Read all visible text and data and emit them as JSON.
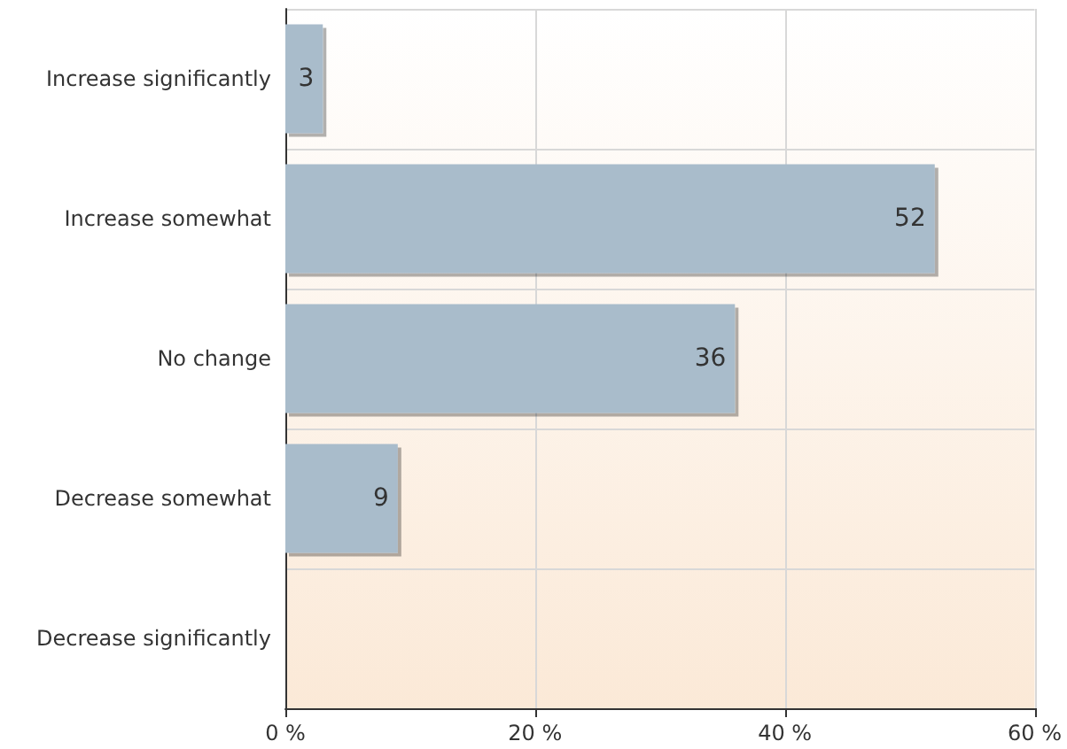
{
  "chart_data": {
    "type": "bar",
    "orientation": "horizontal",
    "categories": [
      "Increase significantly",
      "Increase somewhat",
      "No change",
      "Decrease somewhat",
      "Decrease significantly"
    ],
    "values": [
      3,
      52,
      36,
      9,
      null
    ],
    "color": "#a9bccb",
    "xlim": [
      0,
      60
    ],
    "xticks": [
      {
        "value": 0,
        "label": "0 %"
      },
      {
        "value": 20,
        "label": "20 %"
      },
      {
        "value": 40,
        "label": "40 %"
      },
      {
        "value": 60,
        "label": "60 %"
      }
    ],
    "grid": true,
    "data_labels": true
  }
}
